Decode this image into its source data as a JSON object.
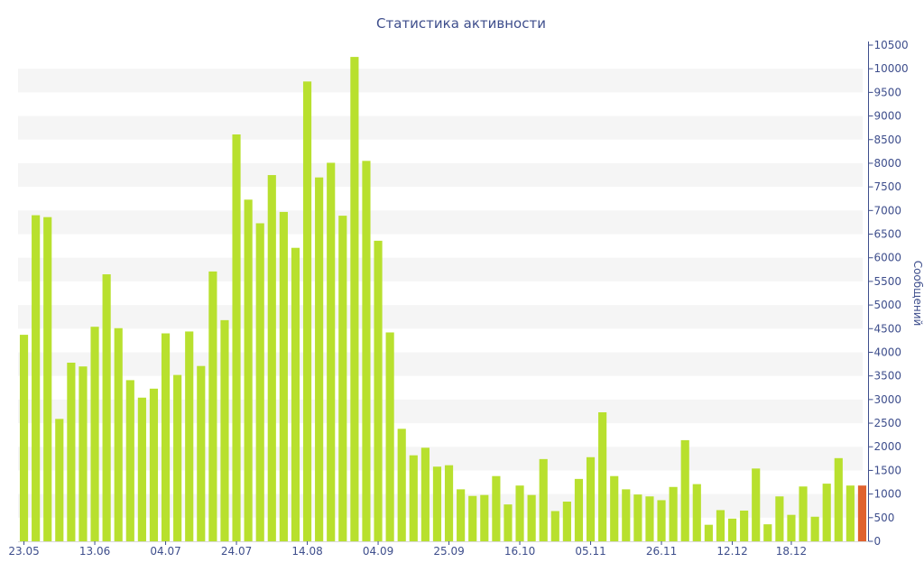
{
  "chart_data": {
    "type": "bar",
    "title": "Статистика активности",
    "xlabel": "",
    "ylabel": "Сообщений",
    "ylim": [
      0,
      10500
    ],
    "y_ticks": [
      0,
      500,
      1000,
      1500,
      2000,
      2500,
      3000,
      3500,
      4000,
      4500,
      5000,
      5500,
      6000,
      6500,
      7000,
      7500,
      8000,
      8500,
      9000,
      9500,
      10000,
      10500
    ],
    "y_axis_side": "right",
    "x_tick_labels": [
      "23.05",
      "13.06",
      "04.07",
      "24.07",
      "14.08",
      "04.09",
      "25.09",
      "16.10",
      "05.11",
      "26.11",
      "12.12",
      "18.12"
    ],
    "x_tick_positions": [
      0,
      6,
      12,
      18,
      24,
      30,
      36,
      42,
      48,
      54,
      60,
      65
    ],
    "grid": "horizontal alternating bands",
    "legend": "none",
    "colors": {
      "bar": "#b8e02e",
      "highlight_bar": "#e0622e",
      "text": "#3e4e8c",
      "band": "#f5f5f5",
      "axis": "#3e4e8c"
    },
    "highlight_index": 71,
    "values": [
      4370,
      6900,
      6860,
      2590,
      3780,
      3700,
      4540,
      5650,
      4510,
      3410,
      3040,
      3230,
      4400,
      3520,
      4440,
      3710,
      5710,
      4680,
      8610,
      7230,
      6730,
      7750,
      6970,
      6210,
      9730,
      7700,
      8010,
      6890,
      10250,
      8050,
      6360,
      4420,
      2380,
      1820,
      1980,
      1580,
      1610,
      1100,
      960,
      980,
      1380,
      780,
      1180,
      980,
      1740,
      640,
      840,
      1320,
      1780,
      2730,
      1380,
      1100,
      990,
      950,
      870,
      1150,
      2140,
      1210,
      350,
      660,
      480,
      650,
      1540,
      360,
      950,
      560,
      1160,
      520,
      1220,
      1760,
      1180,
      1180
    ]
  }
}
